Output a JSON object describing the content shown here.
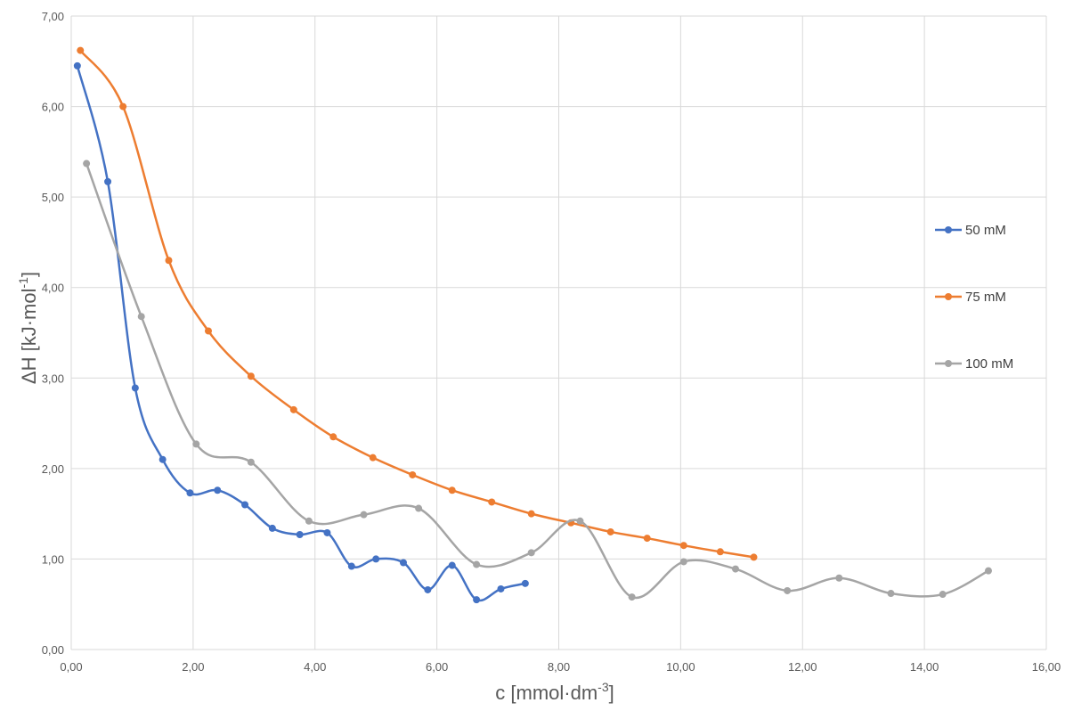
{
  "chart_data": {
    "type": "line",
    "title": "",
    "xlabel": "c [mmol·dm",
    "xlabel_sup": "-3",
    "xlabel_end": "]",
    "ylabel": "ΔH [kJ·mol",
    "ylabel_sup": "-1",
    "ylabel_end": "]",
    "xlim": [
      0,
      16
    ],
    "ylim": [
      0,
      7
    ],
    "x_ticks": [
      0,
      2,
      4,
      6,
      8,
      10,
      12,
      14,
      16
    ],
    "y_ticks": [
      0,
      1,
      2,
      3,
      4,
      5,
      6,
      7
    ],
    "x_tick_labels": [
      "0,00",
      "2,00",
      "4,00",
      "6,00",
      "8,00",
      "10,00",
      "12,00",
      "14,00",
      "16,00"
    ],
    "y_tick_labels": [
      "0,00",
      "1,00",
      "2,00",
      "3,00",
      "4,00",
      "5,00",
      "6,00",
      "7,00"
    ],
    "grid": true,
    "legend_position": "right",
    "series": [
      {
        "name": "50 mM",
        "color": "#4472c4",
        "x": [
          0.1,
          0.6,
          1.05,
          1.5,
          1.95,
          2.4,
          2.85,
          3.3,
          3.75,
          4.2,
          4.6,
          5.0,
          5.45,
          5.85,
          6.25,
          6.65,
          7.05,
          7.45
        ],
        "y": [
          6.45,
          5.17,
          2.89,
          2.1,
          1.73,
          1.76,
          1.6,
          1.34,
          1.27,
          1.29,
          0.92,
          1.0,
          0.96,
          0.66,
          0.93,
          0.55,
          0.67,
          0.73
        ]
      },
      {
        "name": "75 mM",
        "color": "#ed7d31",
        "x": [
          0.15,
          0.85,
          1.6,
          2.25,
          2.95,
          3.65,
          4.3,
          4.95,
          5.6,
          6.25,
          6.9,
          7.55,
          8.2,
          8.85,
          9.45,
          10.05,
          10.65,
          11.2
        ],
        "y": [
          6.62,
          6.0,
          4.3,
          3.52,
          3.02,
          2.65,
          2.35,
          2.12,
          1.93,
          1.76,
          1.63,
          1.5,
          1.4,
          1.3,
          1.23,
          1.15,
          1.08,
          1.02
        ]
      },
      {
        "name": "100 mM",
        "color": "#a5a5a5",
        "x": [
          0.25,
          1.15,
          2.05,
          2.95,
          3.9,
          4.8,
          5.7,
          6.65,
          7.55,
          8.35,
          9.2,
          10.05,
          10.9,
          11.75,
          12.6,
          13.45,
          14.3,
          15.05
        ],
        "y": [
          5.37,
          3.68,
          2.27,
          2.07,
          1.42,
          1.49,
          1.56,
          0.94,
          1.07,
          1.42,
          0.58,
          0.97,
          0.89,
          0.65,
          0.79,
          0.62,
          0.61,
          0.87
        ]
      }
    ]
  }
}
